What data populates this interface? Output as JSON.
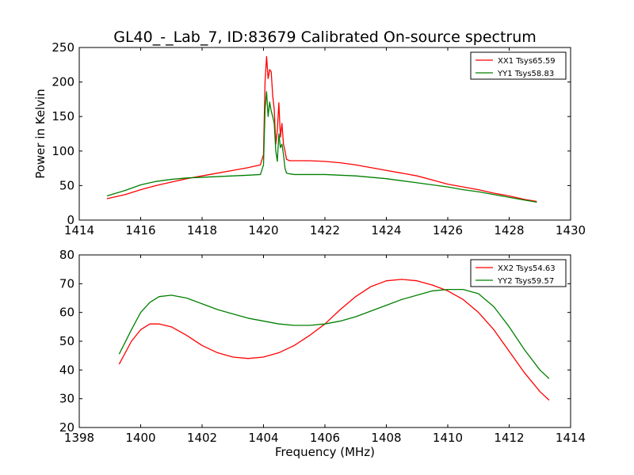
{
  "figure": {
    "title": "GL40_-_Lab_7, ID:83679 Calibrated On-source spectrum"
  },
  "chart_data": [
    {
      "type": "line",
      "title": "GL40_-_Lab_7, ID:83679 Calibrated On-source spectrum",
      "xlabel": "",
      "ylabel": "Power in Kelvin",
      "xlim": [
        1414,
        1430
      ],
      "ylim": [
        0,
        250
      ],
      "xticks": [
        1414,
        1416,
        1418,
        1420,
        1422,
        1424,
        1426,
        1428,
        1430
      ],
      "yticks": [
        0,
        50,
        100,
        150,
        200,
        250
      ],
      "legend_position": "top-right",
      "grid": false,
      "series": [
        {
          "name": "XX1 Tsys65.59",
          "color": "#ff0000",
          "x": [
            1414.9,
            1415.5,
            1416.0,
            1416.5,
            1417.0,
            1417.5,
            1418.0,
            1418.5,
            1419.0,
            1419.5,
            1419.9,
            1420.0,
            1420.05,
            1420.1,
            1420.15,
            1420.2,
            1420.25,
            1420.3,
            1420.35,
            1420.4,
            1420.45,
            1420.5,
            1420.55,
            1420.6,
            1420.65,
            1420.7,
            1420.75,
            1420.85,
            1421.0,
            1421.5,
            1422.0,
            1422.5,
            1423.0,
            1423.5,
            1424.0,
            1424.5,
            1425.0,
            1425.5,
            1426.0,
            1426.5,
            1427.0,
            1427.5,
            1428.0,
            1428.5,
            1428.9
          ],
          "y": [
            31,
            37,
            44,
            50,
            55,
            60,
            64,
            68,
            72,
            76,
            80,
            95,
            200,
            237,
            205,
            218,
            215,
            180,
            160,
            110,
            130,
            170,
            120,
            140,
            110,
            100,
            88,
            86,
            86,
            86,
            85,
            83,
            80,
            76,
            72,
            68,
            64,
            58,
            52,
            48,
            44,
            39,
            35,
            30,
            27
          ]
        },
        {
          "name": "YY1 Tsys58.83",
          "color": "#008000",
          "x": [
            1414.9,
            1415.5,
            1416.0,
            1416.5,
            1417.0,
            1417.5,
            1418.0,
            1418.5,
            1419.0,
            1419.5,
            1419.9,
            1420.0,
            1420.05,
            1420.1,
            1420.15,
            1420.2,
            1420.25,
            1420.3,
            1420.35,
            1420.4,
            1420.45,
            1420.5,
            1420.55,
            1420.6,
            1420.65,
            1420.7,
            1420.75,
            1420.85,
            1421.0,
            1421.5,
            1422.0,
            1422.5,
            1423.0,
            1423.5,
            1424.0,
            1424.5,
            1425.0,
            1425.5,
            1426.0,
            1426.5,
            1427.0,
            1427.5,
            1428.0,
            1428.5,
            1428.9
          ],
          "y": [
            35,
            43,
            51,
            56,
            59,
            61,
            62,
            63,
            64,
            65,
            66,
            80,
            160,
            186,
            150,
            171,
            158,
            150,
            140,
            100,
            85,
            125,
            105,
            110,
            95,
            75,
            68,
            67,
            66,
            66,
            66,
            65,
            64,
            62,
            60,
            57,
            54,
            51,
            48,
            44,
            41,
            37,
            33,
            29,
            26
          ]
        }
      ]
    },
    {
      "type": "line",
      "title": "",
      "xlabel": "Frequency (MHz)",
      "ylabel": "",
      "xlim": [
        1398,
        1414
      ],
      "ylim": [
        20,
        80
      ],
      "xticks": [
        1398,
        1400,
        1402,
        1404,
        1406,
        1408,
        1410,
        1412,
        1414
      ],
      "yticks": [
        20,
        30,
        40,
        50,
        60,
        70,
        80
      ],
      "legend_position": "top-right",
      "grid": false,
      "series": [
        {
          "name": "XX2 Tsys54.63",
          "color": "#ff0000",
          "x": [
            1399.3,
            1399.7,
            1400.0,
            1400.3,
            1400.6,
            1401.0,
            1401.5,
            1402.0,
            1402.5,
            1403.0,
            1403.5,
            1404.0,
            1404.5,
            1405.0,
            1405.5,
            1406.0,
            1406.5,
            1407.0,
            1407.5,
            1408.0,
            1408.5,
            1409.0,
            1409.5,
            1410.0,
            1410.5,
            1411.0,
            1411.5,
            1412.0,
            1412.5,
            1413.0,
            1413.3
          ],
          "y": [
            42,
            50,
            54,
            56,
            56,
            55,
            52,
            48.5,
            46,
            44.5,
            44,
            44.5,
            46,
            48.5,
            52,
            56,
            61,
            65.5,
            69,
            71,
            71.5,
            71,
            69.5,
            67.5,
            64.5,
            60,
            54,
            46.5,
            39,
            32.5,
            29.5
          ]
        },
        {
          "name": "YY2 Tsys59.57",
          "color": "#008000",
          "x": [
            1399.3,
            1399.7,
            1400.0,
            1400.3,
            1400.6,
            1401.0,
            1401.5,
            1402.0,
            1402.5,
            1403.0,
            1403.5,
            1404.0,
            1404.5,
            1405.0,
            1405.5,
            1406.0,
            1406.5,
            1407.0,
            1407.5,
            1408.0,
            1408.5,
            1409.0,
            1409.5,
            1410.0,
            1410.5,
            1411.0,
            1411.5,
            1412.0,
            1412.5,
            1413.0,
            1413.3
          ],
          "y": [
            45.5,
            54,
            60,
            63.5,
            65.5,
            66,
            65,
            63,
            61,
            59.5,
            58,
            57,
            56,
            55.5,
            55.5,
            56,
            57,
            58.5,
            60.5,
            62.5,
            64.5,
            66,
            67.5,
            68,
            68,
            66.5,
            62,
            55,
            47,
            40,
            37
          ]
        }
      ]
    }
  ]
}
